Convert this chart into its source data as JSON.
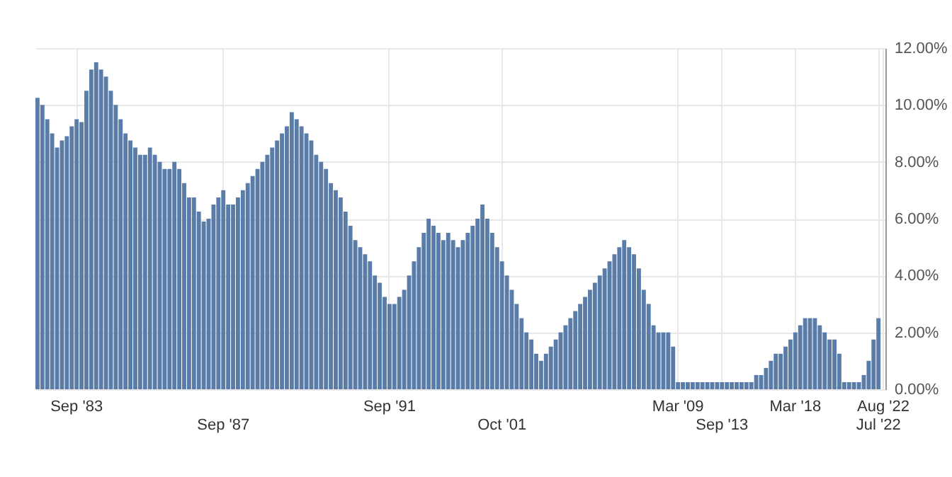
{
  "chart_data": {
    "type": "bar",
    "color": "#5a7ca8",
    "grid": true,
    "ylim": [
      0,
      12
    ],
    "yticks": [
      {
        "value": 0,
        "label": "0.00%"
      },
      {
        "value": 2,
        "label": "2.00%"
      },
      {
        "value": 4,
        "label": "4.00%"
      },
      {
        "value": 6,
        "label": "6.00%"
      },
      {
        "value": 8,
        "label": "8.00%"
      },
      {
        "value": 10,
        "label": "10.00%"
      },
      {
        "value": 12,
        "label": "12.00%"
      }
    ],
    "categories": [
      null,
      null,
      null,
      null,
      null,
      null,
      null,
      null,
      "Sep '83",
      null,
      null,
      null,
      null,
      null,
      null,
      null,
      null,
      null,
      null,
      null,
      null,
      null,
      null,
      null,
      null,
      null,
      null,
      null,
      null,
      null,
      null,
      null,
      null,
      null,
      null,
      null,
      null,
      null,
      "Sep '87",
      null,
      null,
      null,
      null,
      null,
      null,
      null,
      null,
      null,
      null,
      null,
      null,
      null,
      null,
      null,
      null,
      null,
      null,
      null,
      null,
      null,
      null,
      null,
      null,
      null,
      null,
      null,
      null,
      null,
      null,
      null,
      null,
      null,
      "Sep '91",
      null,
      null,
      null,
      null,
      null,
      null,
      null,
      null,
      null,
      null,
      null,
      null,
      null,
      null,
      null,
      null,
      null,
      null,
      null,
      null,
      null,
      null,
      "Oct '01",
      null,
      null,
      null,
      null,
      null,
      null,
      null,
      null,
      null,
      null,
      null,
      null,
      null,
      null,
      null,
      null,
      null,
      null,
      null,
      null,
      null,
      null,
      null,
      null,
      null,
      null,
      null,
      null,
      null,
      null,
      null,
      null,
      null,
      null,
      null,
      "Mar '09",
      null,
      null,
      null,
      null,
      null,
      null,
      null,
      null,
      "Sep '13",
      null,
      null,
      null,
      null,
      null,
      null,
      null,
      null,
      null,
      null,
      null,
      null,
      null,
      null,
      "Mar '18",
      null,
      null,
      null,
      null,
      null,
      null,
      null,
      null,
      null,
      null,
      null,
      null,
      null,
      null,
      null,
      null,
      "Jul '22",
      "Aug '22"
    ],
    "values": [
      10.25,
      10.0,
      9.5,
      9.0,
      8.5,
      8.75,
      8.9,
      9.25,
      9.5,
      9.4,
      10.5,
      11.25,
      11.5,
      11.25,
      11.0,
      10.5,
      10.0,
      9.5,
      9.0,
      8.75,
      8.5,
      8.25,
      8.25,
      8.5,
      8.25,
      8.0,
      7.75,
      7.75,
      8.0,
      7.75,
      7.25,
      6.75,
      6.75,
      6.25,
      5.9,
      6.0,
      6.5,
      6.75,
      7.0,
      6.5,
      6.5,
      6.75,
      7.0,
      7.25,
      7.5,
      7.75,
      8.0,
      8.25,
      8.5,
      8.75,
      9.0,
      9.25,
      9.75,
      9.5,
      9.25,
      9.0,
      8.75,
      8.25,
      8.0,
      7.75,
      7.25,
      7.0,
      6.75,
      6.25,
      5.75,
      5.25,
      5.0,
      4.75,
      4.5,
      4.0,
      3.75,
      3.25,
      3.0,
      3.0,
      3.25,
      3.5,
      4.0,
      4.5,
      5.0,
      5.5,
      6.0,
      5.75,
      5.5,
      5.25,
      5.5,
      5.25,
      5.0,
      5.25,
      5.5,
      5.75,
      6.0,
      6.5,
      6.0,
      5.5,
      5.0,
      4.5,
      4.0,
      3.5,
      3.0,
      2.5,
      2.0,
      1.75,
      1.25,
      1.0,
      1.25,
      1.5,
      1.75,
      2.0,
      2.25,
      2.5,
      2.75,
      3.0,
      3.25,
      3.5,
      3.75,
      4.0,
      4.25,
      4.5,
      4.75,
      5.0,
      5.25,
      5.0,
      4.75,
      4.25,
      3.5,
      3.0,
      2.25,
      2.0,
      2.0,
      2.0,
      1.5,
      0.25,
      0.25,
      0.25,
      0.25,
      0.25,
      0.25,
      0.25,
      0.25,
      0.25,
      0.25,
      0.25,
      0.25,
      0.25,
      0.25,
      0.25,
      0.25,
      0.5,
      0.5,
      0.75,
      1.0,
      1.25,
      1.25,
      1.5,
      1.75,
      2.0,
      2.25,
      2.5,
      2.5,
      2.5,
      2.25,
      2.0,
      1.75,
      1.75,
      1.25,
      0.25,
      0.25,
      0.25,
      0.25,
      0.5,
      1.0,
      1.75,
      2.5,
      null
    ]
  }
}
